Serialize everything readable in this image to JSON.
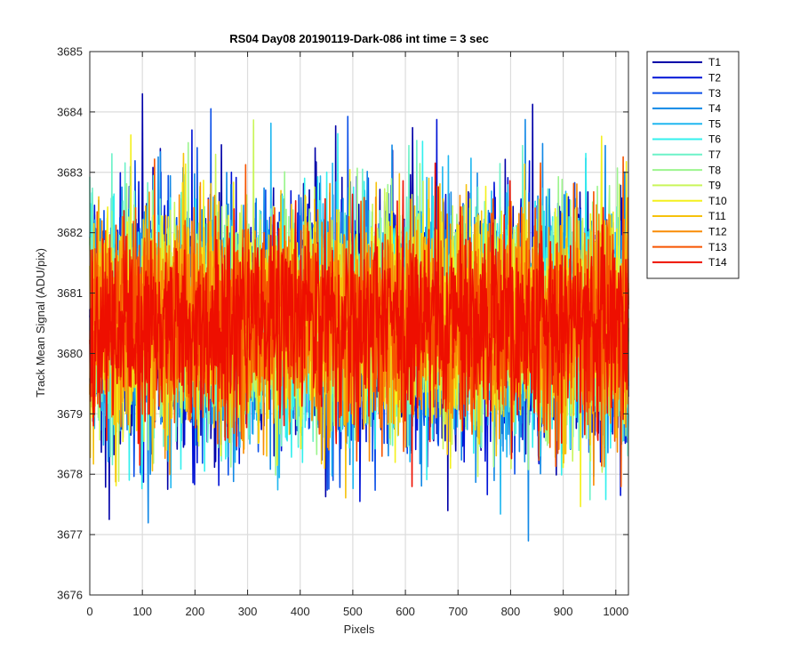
{
  "chart_data": {
    "type": "line",
    "title": "RS04 Day08 20190119-Dark-086 int time = 3 sec",
    "xlabel": "Pixels",
    "ylabel": "Track Mean Signal (ADU/pix)",
    "xlim": [
      0,
      1024
    ],
    "ylim": [
      3676,
      3685
    ],
    "xticks": [
      0,
      100,
      200,
      300,
      400,
      500,
      600,
      700,
      800,
      900,
      1000
    ],
    "yticks": [
      3676,
      3677,
      3678,
      3679,
      3680,
      3681,
      3682,
      3683,
      3684,
      3685
    ],
    "grid": true,
    "legend_position": "outside-top-right",
    "series_summary": {
      "num_points_per_series": 1024,
      "mean": 3680.5,
      "typical_range": [
        3678,
        3683
      ],
      "extreme_min": 3676.75,
      "extreme_max": 3684.3
    },
    "series": [
      {
        "name": "T1",
        "color": "#0000a8"
      },
      {
        "name": "T2",
        "color": "#0012d6"
      },
      {
        "name": "T3",
        "color": "#0a4fe8"
      },
      {
        "name": "T4",
        "color": "#1188e6"
      },
      {
        "name": "T5",
        "color": "#20b7f0"
      },
      {
        "name": "T6",
        "color": "#33f0ee"
      },
      {
        "name": "T7",
        "color": "#6df2c8"
      },
      {
        "name": "T8",
        "color": "#9cf58e"
      },
      {
        "name": "T9",
        "color": "#c9f55a"
      },
      {
        "name": "T10",
        "color": "#f4f01e"
      },
      {
        "name": "T11",
        "color": "#f6c20c"
      },
      {
        "name": "T12",
        "color": "#f98c05"
      },
      {
        "name": "T13",
        "color": "#f65400"
      },
      {
        "name": "T14",
        "color": "#ee0f00"
      }
    ]
  }
}
